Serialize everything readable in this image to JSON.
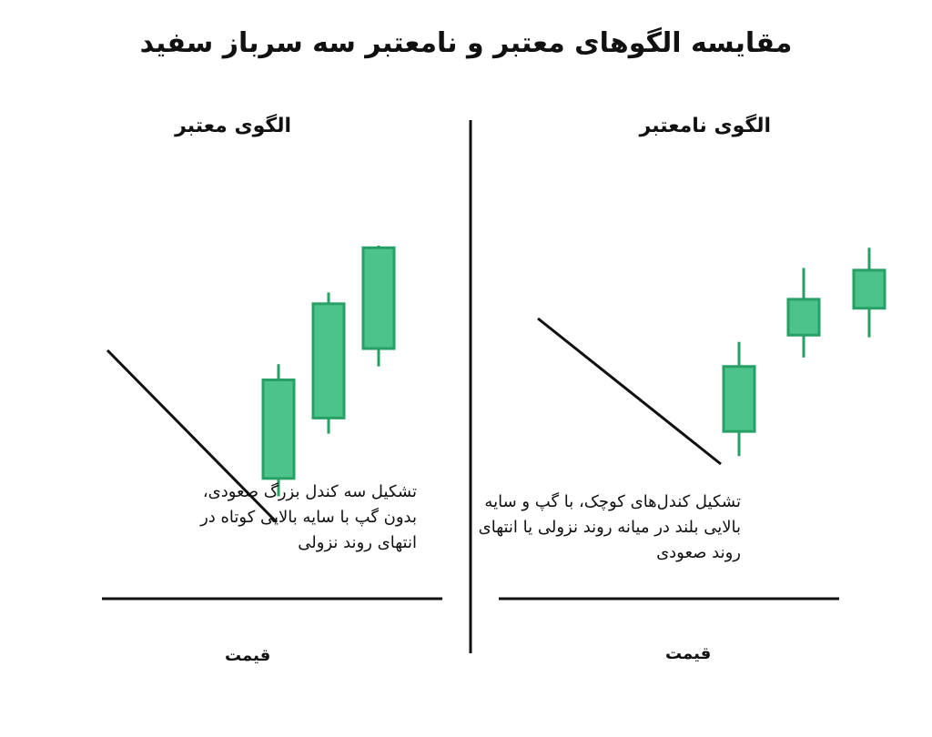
{
  "title": "مقایسه الگوهای معتبر و نامعتبر سه سرباز سفید",
  "colors": {
    "candle_fill": "#4cc38a",
    "candle_stroke": "#27a065",
    "line": "#111111"
  },
  "valid_panel": {
    "heading": "الگوی معتبر",
    "description": "تشکیل سه کندل بزرگ صعودی، بدون گپ با سایه بالایی کوتاه در انتهای روند نزولی",
    "axis_label": "قیمت",
    "candles": [
      {
        "open": 2.2,
        "close": 6.6,
        "high": 7.3,
        "low": 1.4
      },
      {
        "open": 4.9,
        "close": 10.0,
        "high": 10.5,
        "low": 4.2
      },
      {
        "open": 8.0,
        "close": 12.5,
        "high": 12.6,
        "low": 7.2
      }
    ]
  },
  "invalid_panel": {
    "heading": "الگوی نامعتبر",
    "description": "تشکیل کندل‌های کوچک، با گپ و سایه بالایی بلند در میانه روند نزولی یا انتهای روند صعودی",
    "axis_label": "قیمت",
    "candles": [
      {
        "open": 4.3,
        "close": 7.2,
        "high": 8.3,
        "low": 3.2
      },
      {
        "open": 8.6,
        "close": 10.2,
        "high": 11.6,
        "low": 7.6
      },
      {
        "open": 9.8,
        "close": 11.5,
        "high": 12.5,
        "low": 8.5
      }
    ]
  }
}
